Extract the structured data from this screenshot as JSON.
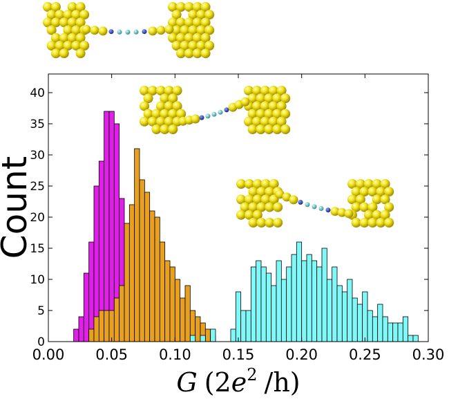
{
  "chart_data": {
    "type": "bar",
    "title": "",
    "xlabel": "G (2e² /h)",
    "xlabel_parts": {
      "var": "G",
      "open": "(2",
      "e": "e",
      "exp": "2",
      "rest": "/h)"
    },
    "ylabel": "Count",
    "xlim": [
      0.0,
      0.3
    ],
    "ylim": [
      0,
      43
    ],
    "xticks": [
      "0.00",
      "0.05",
      "0.10",
      "0.15",
      "0.20",
      "0.25",
      "0.30"
    ],
    "yticks": [
      "0",
      "5",
      "10",
      "15",
      "20",
      "25",
      "30",
      "35",
      "40"
    ],
    "bin_width": 0.004,
    "series": [
      {
        "name": "magenta",
        "color": "#e020e8",
        "x": [
          0.022,
          0.026,
          0.03,
          0.034,
          0.038,
          0.042,
          0.046,
          0.05,
          0.054,
          0.058,
          0.062,
          0.066,
          0.07
        ],
        "values": [
          2,
          4,
          11,
          16,
          25,
          29,
          37,
          37,
          35,
          23,
          8,
          5,
          5
        ]
      },
      {
        "name": "orange",
        "color": "#e8a020",
        "x": [
          0.034,
          0.038,
          0.042,
          0.046,
          0.05,
          0.054,
          0.058,
          0.062,
          0.066,
          0.07,
          0.074,
          0.078,
          0.082,
          0.086,
          0.09,
          0.094,
          0.098,
          0.102,
          0.106,
          0.11,
          0.114,
          0.118,
          0.122,
          0.126,
          0.13
        ],
        "values": [
          2,
          4,
          5,
          5,
          5,
          7,
          9,
          19,
          22,
          31,
          26,
          24,
          21,
          20,
          16,
          13,
          12,
          10,
          7,
          9,
          5,
          4,
          3,
          2,
          1
        ]
      },
      {
        "name": "cyan",
        "color": "#80f8f8",
        "x": [
          0.114,
          0.122,
          0.13,
          0.146,
          0.15,
          0.154,
          0.158,
          0.162,
          0.166,
          0.17,
          0.174,
          0.178,
          0.182,
          0.186,
          0.19,
          0.194,
          0.198,
          0.202,
          0.206,
          0.21,
          0.214,
          0.218,
          0.222,
          0.226,
          0.23,
          0.234,
          0.238,
          0.242,
          0.246,
          0.25,
          0.254,
          0.258,
          0.262,
          0.266,
          0.27,
          0.274,
          0.278,
          0.282,
          0.286,
          0.29
        ],
        "values": [
          1,
          1,
          2,
          2,
          8,
          5,
          5,
          12,
          13,
          12,
          11,
          9,
          13,
          10,
          12,
          14,
          16,
          13,
          14,
          13,
          12,
          15,
          10,
          12,
          9,
          8,
          10,
          7,
          6,
          8,
          5,
          4,
          6,
          4,
          3,
          3,
          3,
          4,
          1,
          1
        ]
      }
    ],
    "insets": [
      {
        "name": "junction-inset-top",
        "tilt": 0
      },
      {
        "name": "junction-inset-middle",
        "tilt": 1
      },
      {
        "name": "junction-inset-right",
        "tilt": -1
      }
    ]
  }
}
